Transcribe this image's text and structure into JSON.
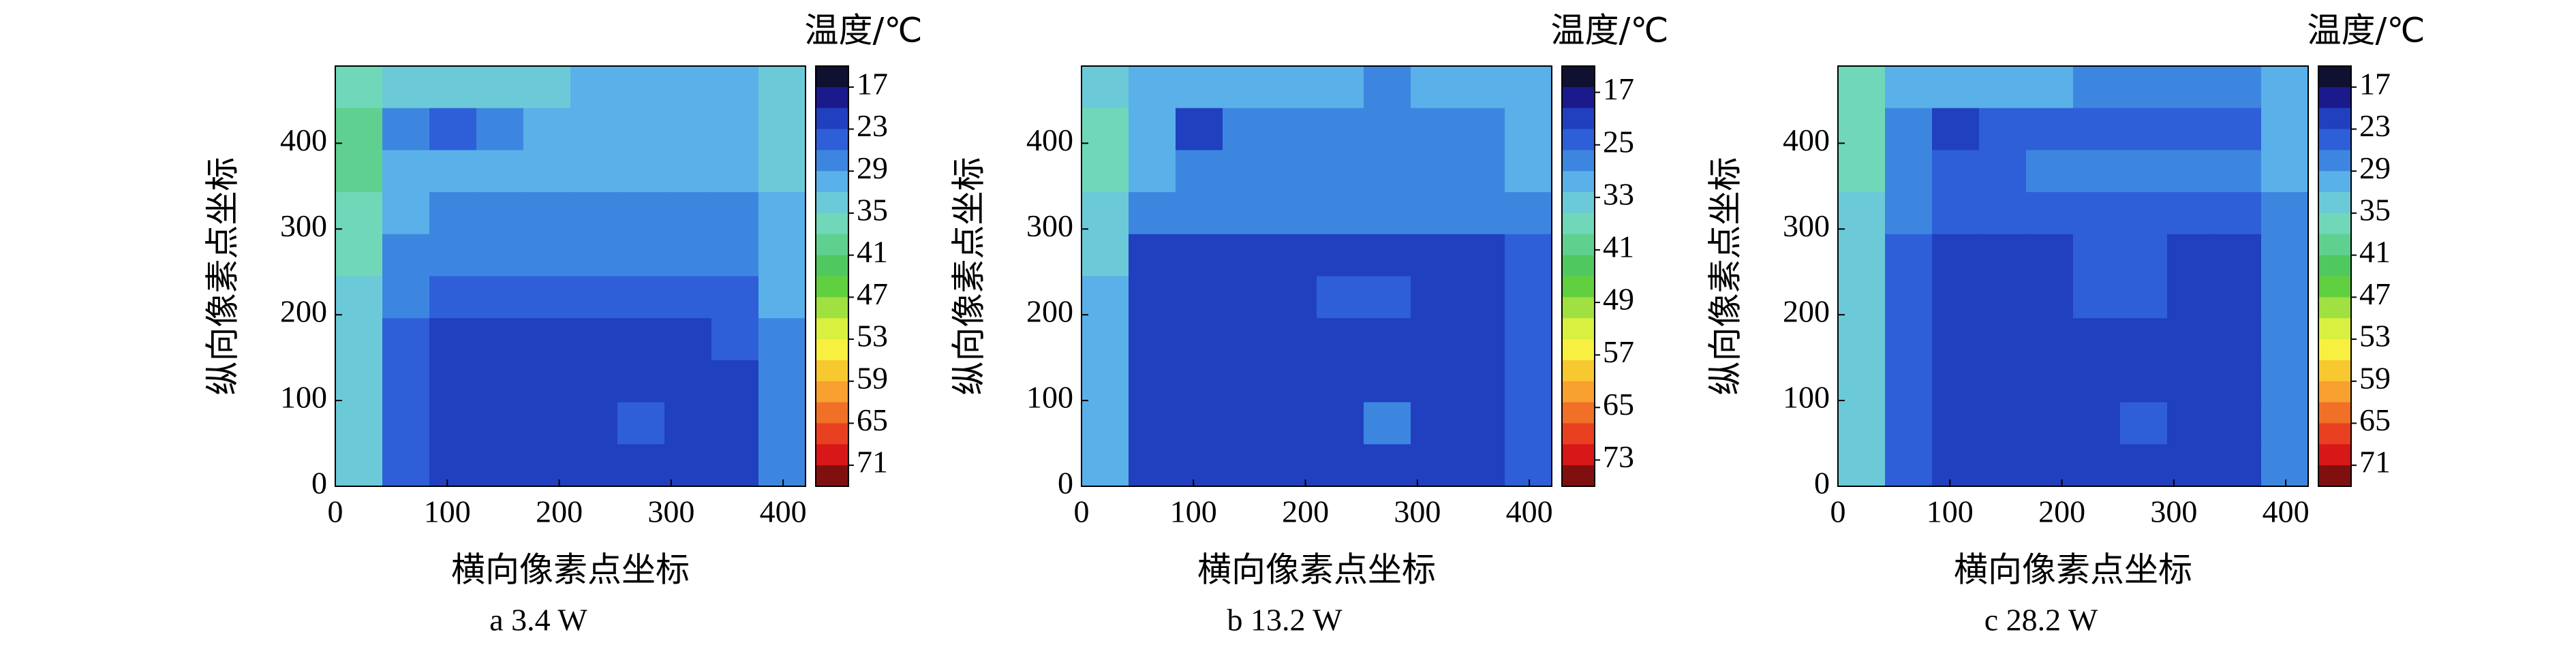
{
  "chart_data": [
    {
      "type": "heatmap",
      "caption": "a 3.4 W",
      "x_label": "横向像素点坐标",
      "y_label": "纵向像素点坐标",
      "xlim": [
        0,
        420
      ],
      "ylim": [
        0,
        490
      ],
      "xticks": [
        0,
        100,
        200,
        300,
        400
      ],
      "yticks": [
        0,
        100,
        200,
        300,
        400
      ],
      "x": [
        21,
        63,
        105,
        147,
        189,
        231,
        273,
        315,
        357,
        399
      ],
      "y": [
        465.5,
        416.5,
        367.5,
        318.5,
        269.5,
        220.5,
        171.5,
        122.5,
        73.5,
        24.5
      ],
      "z": [
        [
          36,
          33,
          32,
          32,
          32,
          31,
          31,
          30,
          31,
          33
        ],
        [
          38,
          28,
          24,
          27,
          29,
          30,
          30,
          30,
          29,
          33
        ],
        [
          38,
          31,
          29,
          30,
          31,
          31,
          30,
          31,
          31,
          32
        ],
        [
          36,
          30,
          27,
          27,
          28,
          28,
          28,
          28,
          28,
          31
        ],
        [
          35,
          28,
          26,
          26,
          26,
          26,
          26,
          26,
          27,
          30
        ],
        [
          34,
          26,
          23,
          23,
          24,
          24,
          24,
          24,
          25,
          29
        ],
        [
          33,
          25,
          22,
          22,
          22,
          22,
          22,
          22,
          23,
          28
        ],
        [
          33,
          24,
          21,
          21,
          22,
          22,
          22,
          22,
          22,
          27
        ],
        [
          33,
          24,
          21,
          21,
          21,
          22,
          24,
          21,
          21,
          27
        ],
        [
          32,
          24,
          22,
          22,
          22,
          22,
          22,
          22,
          22,
          27
        ]
      ],
      "colorbar": {
        "title": "温度/℃",
        "clim": [
          14,
          74
        ],
        "ticks": [
          17,
          23,
          29,
          35,
          41,
          47,
          53,
          59,
          65,
          71
        ],
        "colors": [
          "#101030",
          "#1a1a8c",
          "#2040c0",
          "#2e5fd8",
          "#3d86e0",
          "#5ab0e8",
          "#6ccad8",
          "#70d8b8",
          "#60d090",
          "#50c860",
          "#60d040",
          "#a0e040",
          "#d8f040",
          "#f8f040",
          "#f8c830",
          "#f8a030",
          "#f07028",
          "#e84020",
          "#d81818",
          "#801010"
        ]
      }
    },
    {
      "type": "heatmap",
      "caption": "b 13.2 W",
      "x_label": "横向像素点坐标",
      "y_label": "纵向像素点坐标",
      "xlim": [
        0,
        420
      ],
      "ylim": [
        0,
        490
      ],
      "xticks": [
        0,
        100,
        200,
        300,
        400
      ],
      "yticks": [
        0,
        100,
        200,
        300,
        400
      ],
      "x": [
        21,
        63,
        105,
        147,
        189,
        231,
        273,
        315,
        357,
        399
      ],
      "y": [
        465.5,
        416.5,
        367.5,
        318.5,
        269.5,
        220.5,
        171.5,
        122.5,
        73.5,
        24.5
      ],
      "z": [
        [
          34,
          30,
          30,
          29,
          29,
          29,
          28,
          29,
          29,
          31
        ],
        [
          37,
          29,
          22,
          26,
          27,
          28,
          28,
          27,
          27,
          29
        ],
        [
          36,
          29,
          27,
          27,
          28,
          28,
          28,
          28,
          28,
          29
        ],
        [
          34,
          28,
          26,
          26,
          26,
          26,
          26,
          26,
          26,
          27
        ],
        [
          33,
          22,
          21,
          21,
          22,
          22,
          22,
          22,
          21,
          24
        ],
        [
          32,
          21,
          20,
          20,
          21,
          24,
          24,
          21,
          21,
          24
        ],
        [
          32,
          21,
          20,
          20,
          20,
          21,
          21,
          20,
          20,
          23
        ],
        [
          32,
          21,
          20,
          20,
          21,
          21,
          21,
          20,
          20,
          23
        ],
        [
          31,
          21,
          20,
          20,
          20,
          21,
          26,
          20,
          20,
          23
        ],
        [
          31,
          22,
          21,
          21,
          21,
          21,
          21,
          21,
          21,
          23
        ]
      ],
      "colorbar": {
        "title": "温度/℃",
        "clim": [
          13,
          77
        ],
        "ticks": [
          17,
          25,
          33,
          41,
          49,
          57,
          65,
          73
        ],
        "colors": [
          "#101030",
          "#1a1a8c",
          "#2040c0",
          "#2e5fd8",
          "#3d86e0",
          "#5ab0e8",
          "#6ccad8",
          "#70d8b8",
          "#60d090",
          "#50c860",
          "#60d040",
          "#a0e040",
          "#d8f040",
          "#f8f040",
          "#f8c830",
          "#f8a030",
          "#f07028",
          "#e84020",
          "#d81818",
          "#801010"
        ]
      }
    },
    {
      "type": "heatmap",
      "caption": "c 28.2 W",
      "x_label": "横向像素点坐标",
      "y_label": "纵向像素点坐标",
      "xlim": [
        0,
        420
      ],
      "ylim": [
        0,
        490
      ],
      "xticks": [
        0,
        100,
        200,
        300,
        400
      ],
      "yticks": [
        0,
        100,
        200,
        300,
        400
      ],
      "x": [
        21,
        63,
        105,
        147,
        189,
        231,
        273,
        315,
        357,
        399
      ],
      "y": [
        465.5,
        416.5,
        367.5,
        318.5,
        269.5,
        220.5,
        171.5,
        122.5,
        73.5,
        24.5
      ],
      "z": [
        [
          35,
          30,
          29,
          29,
          29,
          28,
          28,
          27,
          27,
          30
        ],
        [
          37,
          27,
          22,
          23,
          24,
          24,
          24,
          23,
          23,
          29
        ],
        [
          36,
          28,
          25,
          25,
          26,
          26,
          26,
          26,
          26,
          29
        ],
        [
          34,
          27,
          24,
          24,
          25,
          25,
          25,
          25,
          25,
          28
        ],
        [
          33,
          25,
          22,
          22,
          22,
          23,
          23,
          22,
          22,
          27
        ],
        [
          33,
          24,
          21,
          21,
          22,
          24,
          24,
          22,
          21,
          26
        ],
        [
          33,
          24,
          21,
          21,
          21,
          22,
          22,
          21,
          21,
          26
        ],
        [
          33,
          24,
          21,
          21,
          21,
          21,
          21,
          21,
          21,
          26
        ],
        [
          33,
          24,
          21,
          21,
          21,
          21,
          25,
          21,
          21,
          26
        ],
        [
          32,
          24,
          22,
          22,
          22,
          22,
          22,
          22,
          22,
          26
        ]
      ],
      "colorbar": {
        "title": "温度/℃",
        "clim": [
          14,
          74
        ],
        "ticks": [
          17,
          23,
          29,
          35,
          41,
          47,
          53,
          59,
          65,
          71
        ],
        "colors": [
          "#101030",
          "#1a1a8c",
          "#2040c0",
          "#2e5fd8",
          "#3d86e0",
          "#5ab0e8",
          "#6ccad8",
          "#70d8b8",
          "#60d090",
          "#50c860",
          "#60d040",
          "#a0e040",
          "#d8f040",
          "#f8f040",
          "#f8c830",
          "#f8a030",
          "#f07028",
          "#e84020",
          "#d81818",
          "#801010"
        ]
      }
    }
  ]
}
